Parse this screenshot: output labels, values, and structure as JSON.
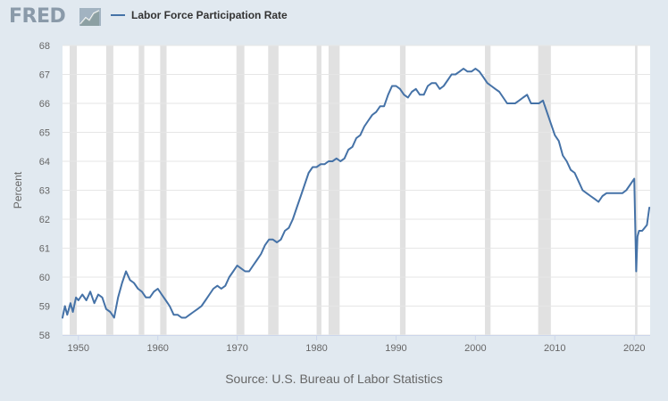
{
  "header": {
    "logo_text": "FRED",
    "logo_icon": "fred-chart-icon",
    "legend_label": "Labor Force Participation Rate",
    "series_color": "#4572a7"
  },
  "source_text": "Source: U.S. Bureau of Labor Statistics",
  "chart_data": {
    "type": "line",
    "title": "",
    "xlabel": "",
    "ylabel": "Percent",
    "xlim": [
      1948,
      2022
    ],
    "ylim": [
      58,
      68
    ],
    "x_ticks": [
      1950,
      1960,
      1970,
      1980,
      1990,
      2000,
      2010,
      2020
    ],
    "y_ticks": [
      58,
      59,
      60,
      61,
      62,
      63,
      64,
      65,
      66,
      67,
      68
    ],
    "grid": true,
    "legend_position": "top-left",
    "recessions": [
      [
        1948.9,
        1949.8
      ],
      [
        1953.5,
        1954.4
      ],
      [
        1957.6,
        1958.3
      ],
      [
        1960.3,
        1961.1
      ],
      [
        1969.9,
        1970.9
      ],
      [
        1973.9,
        1975.2
      ],
      [
        1980.0,
        1980.6
      ],
      [
        1981.5,
        1982.9
      ],
      [
        1990.5,
        1991.2
      ],
      [
        2001.2,
        2001.9
      ],
      [
        2007.9,
        2009.5
      ],
      [
        2020.1,
        2020.4
      ]
    ],
    "series": [
      {
        "name": "Labor Force Participation Rate",
        "x": [
          1948.0,
          1948.3,
          1948.6,
          1949.0,
          1949.3,
          1949.7,
          1950.0,
          1950.5,
          1951.0,
          1951.5,
          1952.0,
          1952.5,
          1953.0,
          1953.5,
          1954.0,
          1954.5,
          1955.0,
          1955.5,
          1956.0,
          1956.5,
          1957.0,
          1957.5,
          1958.0,
          1958.5,
          1959.0,
          1959.5,
          1960.0,
          1960.5,
          1961.0,
          1961.5,
          1962.0,
          1962.5,
          1963.0,
          1963.5,
          1964.0,
          1964.5,
          1965.0,
          1965.5,
          1966.0,
          1966.5,
          1967.0,
          1967.5,
          1968.0,
          1968.5,
          1969.0,
          1969.5,
          1970.0,
          1970.5,
          1971.0,
          1971.5,
          1972.0,
          1972.5,
          1973.0,
          1973.5,
          1974.0,
          1974.5,
          1975.0,
          1975.5,
          1976.0,
          1976.5,
          1977.0,
          1977.5,
          1978.0,
          1978.5,
          1979.0,
          1979.5,
          1980.0,
          1980.5,
          1981.0,
          1981.5,
          1982.0,
          1982.5,
          1983.0,
          1983.5,
          1984.0,
          1984.5,
          1985.0,
          1985.5,
          1986.0,
          1986.5,
          1987.0,
          1987.5,
          1988.0,
          1988.5,
          1989.0,
          1989.5,
          1990.0,
          1990.5,
          1991.0,
          1991.5,
          1992.0,
          1992.5,
          1993.0,
          1993.5,
          1994.0,
          1994.5,
          1995.0,
          1995.5,
          1996.0,
          1996.5,
          1997.0,
          1997.5,
          1998.0,
          1998.5,
          1999.0,
          1999.5,
          2000.0,
          2000.5,
          2001.0,
          2001.5,
          2002.0,
          2002.5,
          2003.0,
          2003.5,
          2004.0,
          2004.5,
          2005.0,
          2005.5,
          2006.0,
          2006.5,
          2007.0,
          2007.5,
          2008.0,
          2008.5,
          2009.0,
          2009.5,
          2010.0,
          2010.5,
          2011.0,
          2011.5,
          2012.0,
          2012.5,
          2013.0,
          2013.5,
          2014.0,
          2014.5,
          2015.0,
          2015.5,
          2016.0,
          2016.5,
          2017.0,
          2017.5,
          2018.0,
          2018.5,
          2019.0,
          2019.5,
          2020.0,
          2020.25,
          2020.4,
          2020.6,
          2020.8,
          2021.0,
          2021.3,
          2021.6,
          2021.9
        ],
        "values": [
          58.6,
          59.0,
          58.7,
          59.1,
          58.8,
          59.3,
          59.2,
          59.4,
          59.2,
          59.5,
          59.1,
          59.4,
          59.3,
          58.9,
          58.8,
          58.6,
          59.3,
          59.8,
          60.2,
          59.9,
          59.8,
          59.6,
          59.5,
          59.3,
          59.3,
          59.5,
          59.6,
          59.4,
          59.2,
          59.0,
          58.7,
          58.7,
          58.6,
          58.6,
          58.7,
          58.8,
          58.9,
          59.0,
          59.2,
          59.4,
          59.6,
          59.7,
          59.6,
          59.7,
          60.0,
          60.2,
          60.4,
          60.3,
          60.2,
          60.2,
          60.4,
          60.6,
          60.8,
          61.1,
          61.3,
          61.3,
          61.2,
          61.3,
          61.6,
          61.7,
          62.0,
          62.4,
          62.8,
          63.2,
          63.6,
          63.8,
          63.8,
          63.9,
          63.9,
          64.0,
          64.0,
          64.1,
          64.0,
          64.1,
          64.4,
          64.5,
          64.8,
          64.9,
          65.2,
          65.4,
          65.6,
          65.7,
          65.9,
          65.9,
          66.3,
          66.6,
          66.6,
          66.5,
          66.3,
          66.2,
          66.4,
          66.5,
          66.3,
          66.3,
          66.6,
          66.7,
          66.7,
          66.5,
          66.6,
          66.8,
          67.0,
          67.0,
          67.1,
          67.2,
          67.1,
          67.1,
          67.2,
          67.1,
          66.9,
          66.7,
          66.6,
          66.5,
          66.4,
          66.2,
          66.0,
          66.0,
          66.0,
          66.1,
          66.2,
          66.3,
          66.0,
          66.0,
          66.0,
          66.1,
          65.7,
          65.3,
          64.9,
          64.7,
          64.2,
          64.0,
          63.7,
          63.6,
          63.3,
          63.0,
          62.9,
          62.8,
          62.7,
          62.6,
          62.8,
          62.9,
          62.9,
          62.9,
          62.9,
          62.9,
          63.0,
          63.2,
          63.4,
          60.2,
          61.4,
          61.6,
          61.6,
          61.6,
          61.7,
          61.8,
          62.4
        ]
      }
    ]
  }
}
